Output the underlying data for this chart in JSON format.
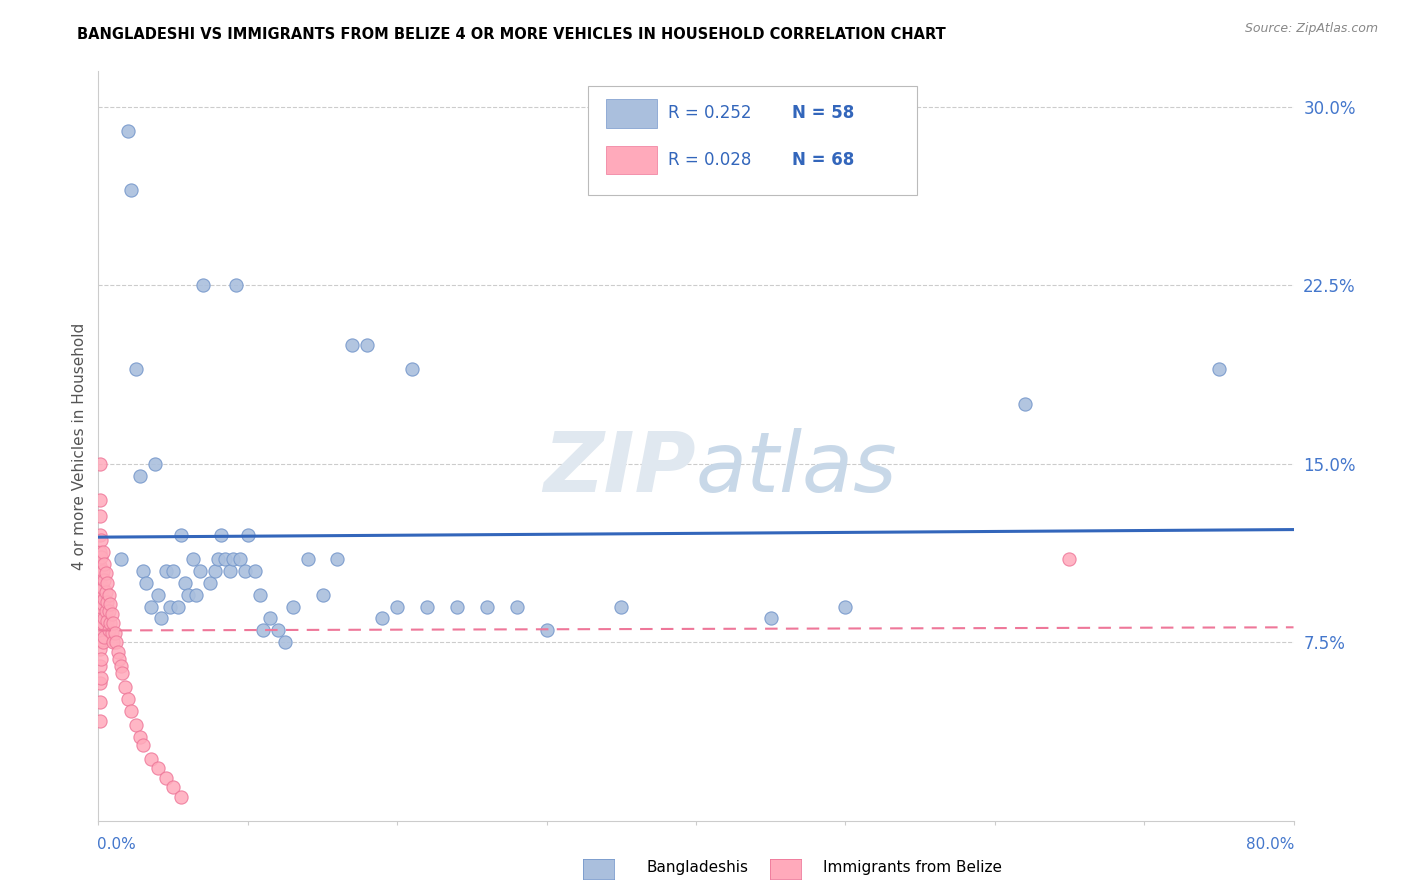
{
  "title": "BANGLADESHI VS IMMIGRANTS FROM BELIZE 4 OR MORE VEHICLES IN HOUSEHOLD CORRELATION CHART",
  "source": "Source: ZipAtlas.com",
  "ylabel": "4 or more Vehicles in Household",
  "yticks": [
    0.0,
    0.075,
    0.15,
    0.225,
    0.3
  ],
  "ytick_labels": [
    "",
    "7.5%",
    "15.0%",
    "22.5%",
    "30.0%"
  ],
  "xlim": [
    0.0,
    0.8
  ],
  "ylim": [
    0.0,
    0.315
  ],
  "blue_color": "#AABFDD",
  "blue_edge": "#7799CC",
  "pink_color": "#FFAABB",
  "pink_edge": "#EE7799",
  "line_blue": "#3366BB",
  "line_pink": "#EE7799",
  "watermark": "ZIPatlas",
  "bang_x": [
    0.015,
    0.02,
    0.022,
    0.025,
    0.028,
    0.03,
    0.032,
    0.035,
    0.038,
    0.04,
    0.042,
    0.045,
    0.048,
    0.05,
    0.053,
    0.055,
    0.058,
    0.06,
    0.063,
    0.065,
    0.068,
    0.07,
    0.075,
    0.078,
    0.08,
    0.082,
    0.085,
    0.088,
    0.09,
    0.092,
    0.095,
    0.098,
    0.1,
    0.105,
    0.108,
    0.11,
    0.115,
    0.12,
    0.125,
    0.13,
    0.14,
    0.15,
    0.16,
    0.17,
    0.18,
    0.19,
    0.2,
    0.21,
    0.22,
    0.24,
    0.26,
    0.28,
    0.3,
    0.35,
    0.45,
    0.5,
    0.62,
    0.75
  ],
  "bang_y": [
    0.11,
    0.29,
    0.265,
    0.19,
    0.145,
    0.105,
    0.1,
    0.09,
    0.15,
    0.095,
    0.085,
    0.105,
    0.09,
    0.105,
    0.09,
    0.12,
    0.1,
    0.095,
    0.11,
    0.095,
    0.105,
    0.225,
    0.1,
    0.105,
    0.11,
    0.12,
    0.11,
    0.105,
    0.11,
    0.225,
    0.11,
    0.105,
    0.12,
    0.105,
    0.095,
    0.08,
    0.085,
    0.08,
    0.075,
    0.09,
    0.11,
    0.095,
    0.11,
    0.2,
    0.2,
    0.085,
    0.09,
    0.19,
    0.09,
    0.09,
    0.09,
    0.09,
    0.08,
    0.09,
    0.085,
    0.09,
    0.175,
    0.19
  ],
  "belize_x": [
    0.001,
    0.001,
    0.001,
    0.001,
    0.001,
    0.001,
    0.001,
    0.001,
    0.001,
    0.001,
    0.001,
    0.001,
    0.001,
    0.001,
    0.001,
    0.002,
    0.002,
    0.002,
    0.002,
    0.002,
    0.002,
    0.002,
    0.002,
    0.002,
    0.003,
    0.003,
    0.003,
    0.003,
    0.003,
    0.003,
    0.004,
    0.004,
    0.004,
    0.004,
    0.004,
    0.005,
    0.005,
    0.005,
    0.006,
    0.006,
    0.006,
    0.007,
    0.007,
    0.007,
    0.008,
    0.008,
    0.009,
    0.009,
    0.01,
    0.01,
    0.011,
    0.012,
    0.013,
    0.014,
    0.015,
    0.016,
    0.018,
    0.02,
    0.022,
    0.025,
    0.028,
    0.03,
    0.035,
    0.04,
    0.045,
    0.05,
    0.055,
    0.65
  ],
  "belize_y": [
    0.15,
    0.135,
    0.128,
    0.12,
    0.113,
    0.107,
    0.1,
    0.093,
    0.086,
    0.079,
    0.072,
    0.065,
    0.058,
    0.05,
    0.042,
    0.118,
    0.111,
    0.104,
    0.097,
    0.09,
    0.083,
    0.076,
    0.068,
    0.06,
    0.113,
    0.105,
    0.098,
    0.091,
    0.083,
    0.075,
    0.108,
    0.101,
    0.093,
    0.085,
    0.077,
    0.104,
    0.096,
    0.088,
    0.1,
    0.092,
    0.084,
    0.095,
    0.088,
    0.08,
    0.091,
    0.083,
    0.087,
    0.079,
    0.083,
    0.075,
    0.079,
    0.075,
    0.071,
    0.068,
    0.065,
    0.062,
    0.056,
    0.051,
    0.046,
    0.04,
    0.035,
    0.032,
    0.026,
    0.022,
    0.018,
    0.014,
    0.01,
    0.11
  ]
}
